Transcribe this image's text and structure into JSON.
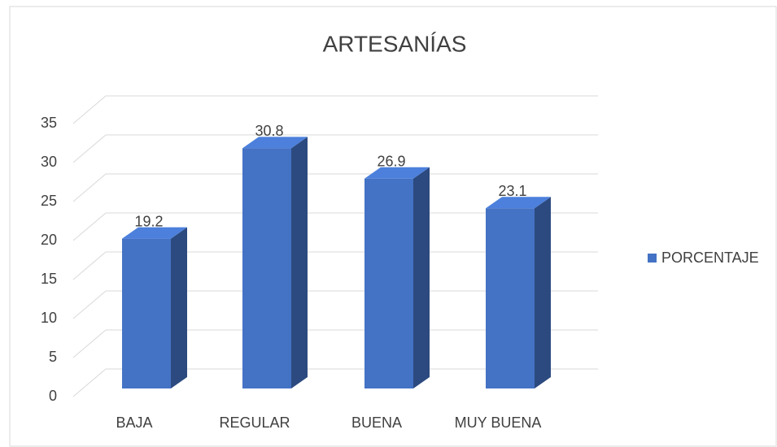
{
  "chart_data": {
    "type": "bar3d",
    "title": "ARTESANÍAS",
    "categories": [
      "BAJA",
      "REGULAR",
      "BUENA",
      "MUY BUENA"
    ],
    "series": [
      {
        "name": "PORCENTAJE",
        "color": "#4472c4",
        "values": [
          19.2,
          30.8,
          26.9,
          23.1
        ]
      }
    ],
    "ylim": [
      0,
      35
    ],
    "yticks": [
      0,
      5,
      10,
      15,
      20,
      25,
      30,
      35
    ],
    "grid": true,
    "legend": "right"
  }
}
